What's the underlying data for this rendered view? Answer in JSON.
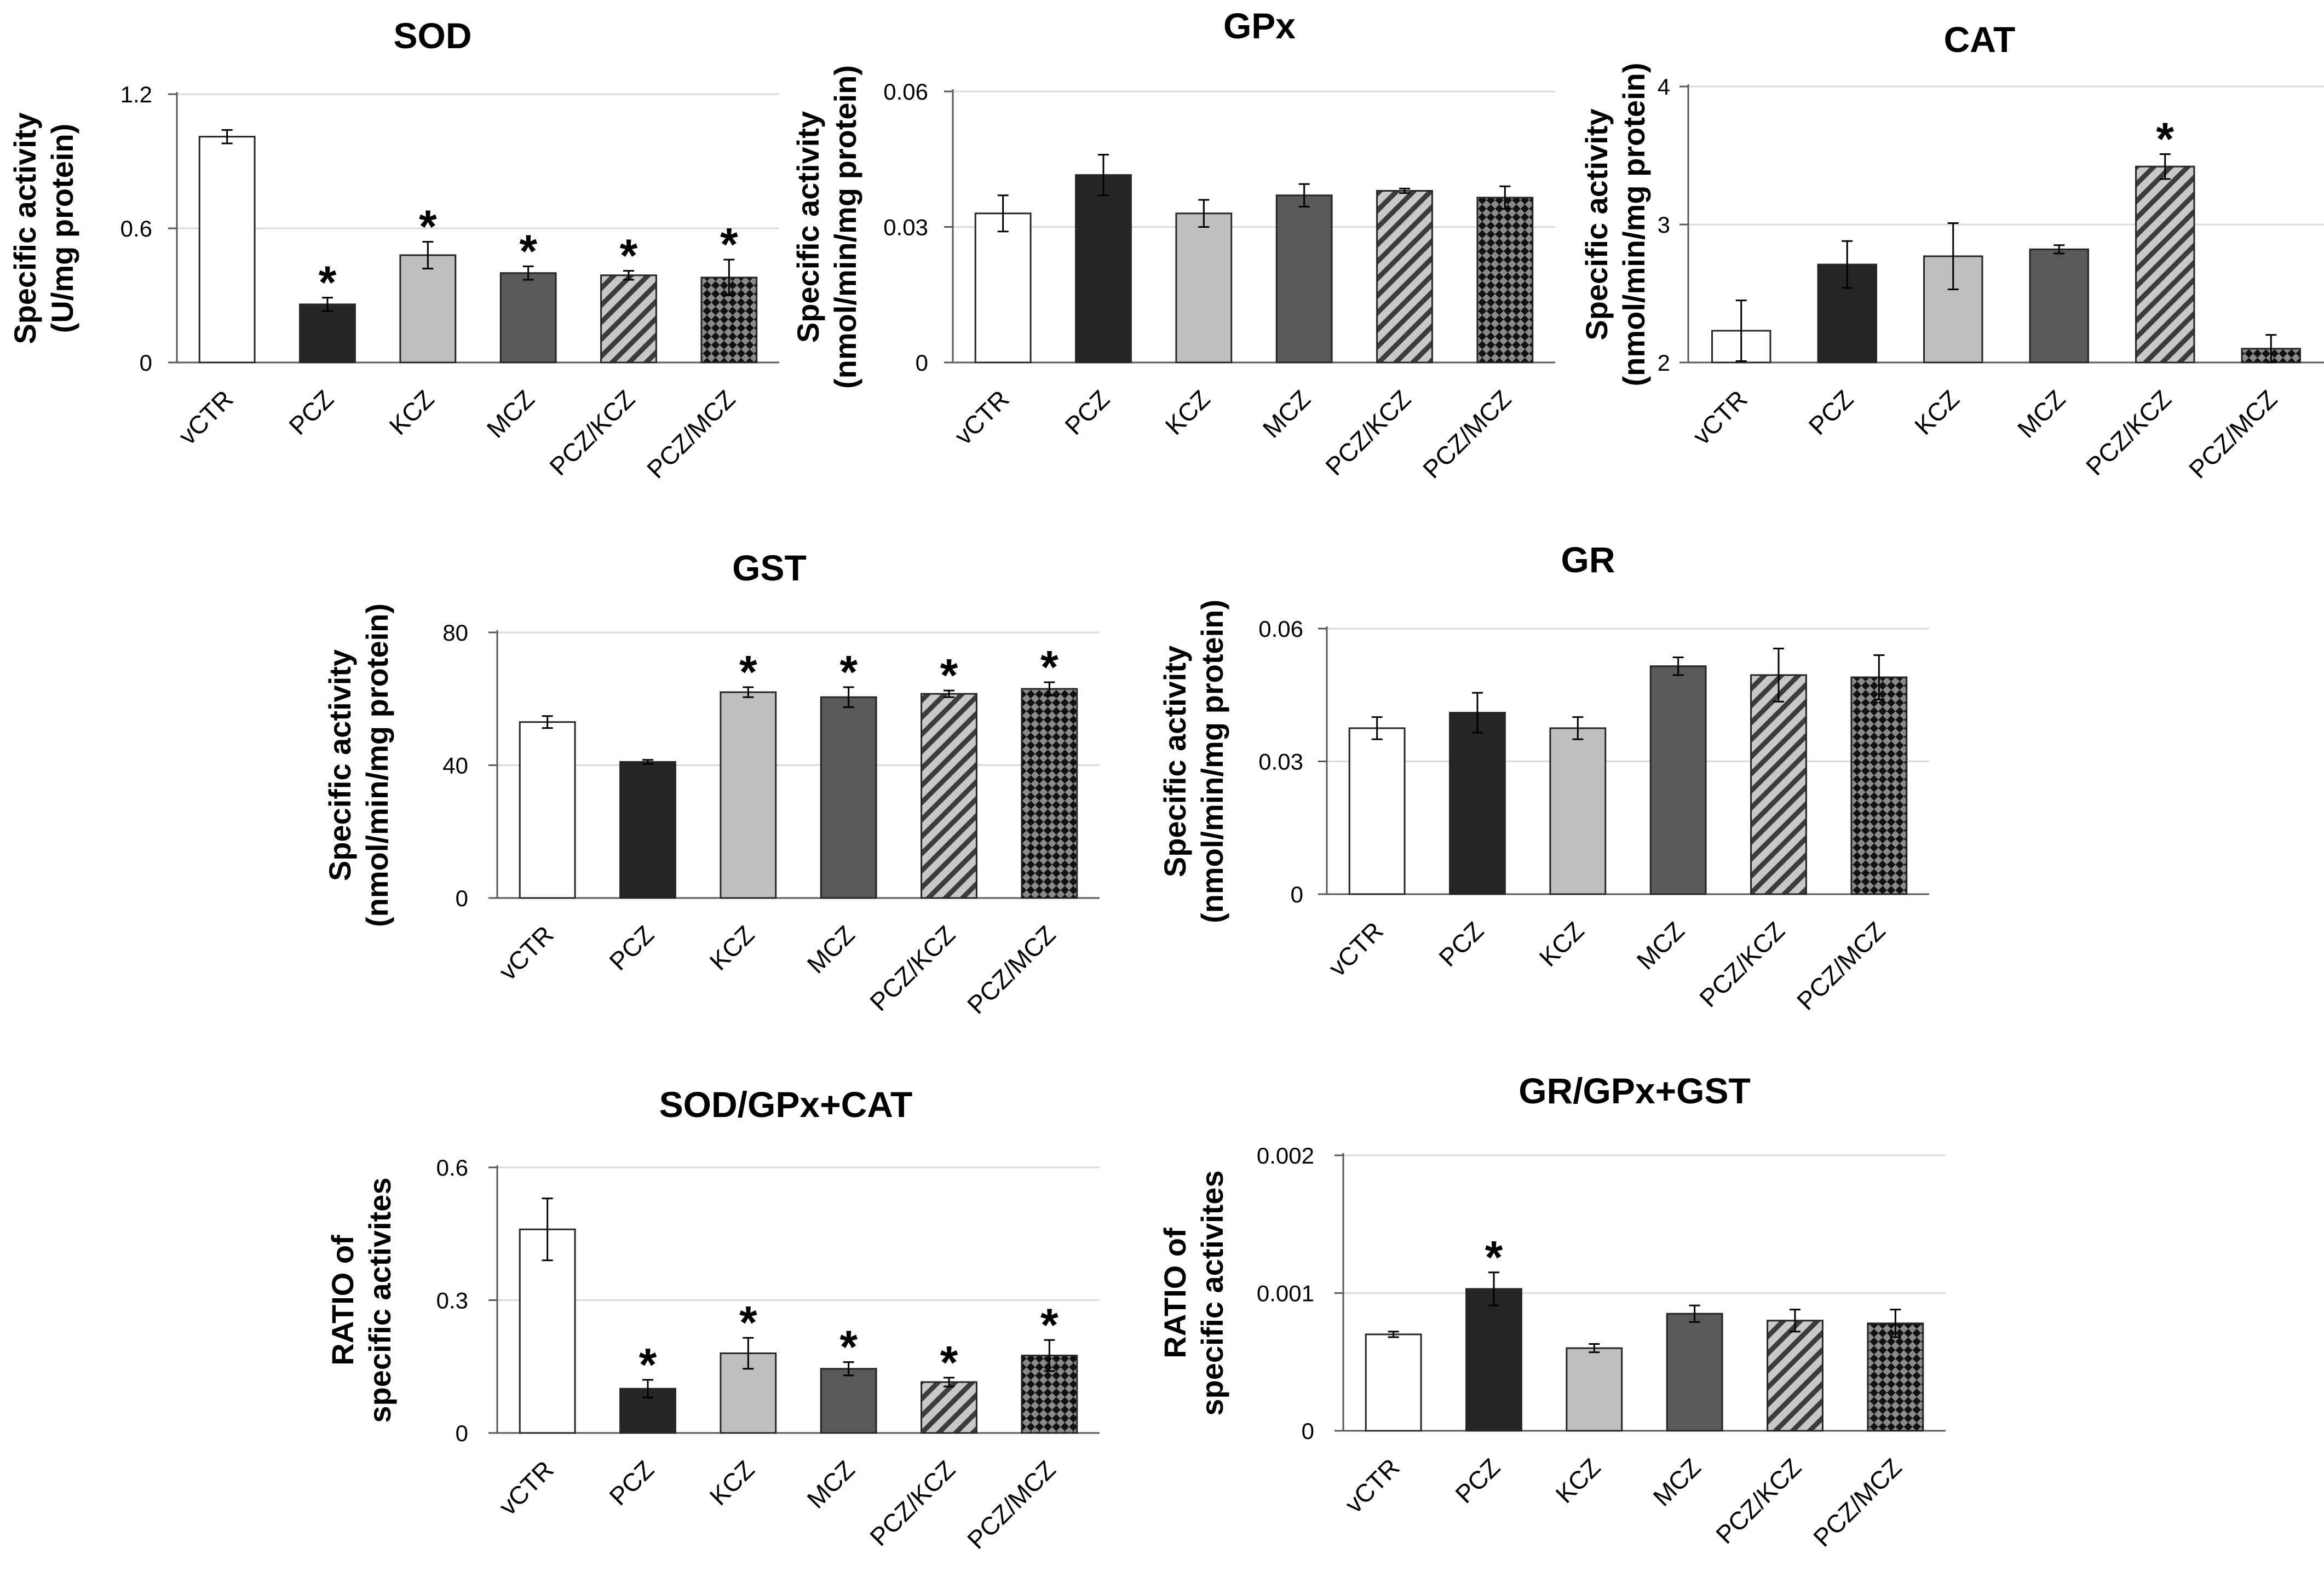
{
  "chart_data": [
    {
      "type": "bar",
      "title": "SOD",
      "ylabel": [
        "Specific activity",
        "(U/mg protein)"
      ],
      "categories": [
        "vCTR",
        "PCZ",
        "KCZ",
        "MCZ",
        "PCZ/KCZ",
        "PCZ/MCZ"
      ],
      "values": [
        1.01,
        0.26,
        0.48,
        0.4,
        0.39,
        0.38
      ],
      "errors": [
        0.03,
        0.03,
        0.06,
        0.03,
        0.02,
        0.08
      ],
      "significant": [
        false,
        true,
        true,
        true,
        true,
        true
      ],
      "significance_marker": "*",
      "ylim": [
        0,
        1.2
      ],
      "yticks": [
        "0",
        "0.6",
        "1.2"
      ],
      "grid": true
    },
    {
      "type": "bar",
      "title": "GPx",
      "ylabel": [
        "Specific activity",
        "(nmol/min/mg protein)"
      ],
      "categories": [
        "vCTR",
        "PCZ",
        "KCZ",
        "MCZ",
        "PCZ/KCZ",
        "PCZ/MCZ"
      ],
      "values": [
        0.033,
        0.0415,
        0.033,
        0.037,
        0.038,
        0.0365
      ],
      "errors": [
        0.004,
        0.0045,
        0.003,
        0.0025,
        0.0005,
        0.0025
      ],
      "significant": [
        false,
        false,
        false,
        false,
        false,
        false
      ],
      "significance_marker": "*",
      "ylim": [
        0,
        0.06
      ],
      "yticks": [
        "0",
        "0.03",
        "0.06"
      ],
      "grid": true
    },
    {
      "type": "bar",
      "title": "CAT",
      "ylabel": [
        "Specific activity",
        "(nmol/min/mg protein)"
      ],
      "categories": [
        "vCTR",
        "PCZ",
        "KCZ",
        "MCZ",
        "PCZ/KCZ",
        "PCZ/MCZ"
      ],
      "values": [
        2.23,
        2.71,
        2.77,
        2.82,
        3.42,
        2.1
      ],
      "errors": [
        0.22,
        0.17,
        0.24,
        0.03,
        0.09,
        0.1
      ],
      "significant": [
        false,
        false,
        false,
        false,
        true,
        false
      ],
      "significance_marker": "*",
      "ylim": [
        2,
        4
      ],
      "yticks": [
        "2",
        "3",
        "4"
      ],
      "grid": true
    },
    {
      "type": "bar",
      "title": "GST",
      "ylabel": [
        "Specific activity",
        "(nmol/min/mg protein)"
      ],
      "categories": [
        "vCTR",
        "PCZ",
        "KCZ",
        "MCZ",
        "PCZ/KCZ",
        "PCZ/MCZ"
      ],
      "values": [
        53,
        41,
        62,
        60.5,
        61.5,
        63
      ],
      "errors": [
        1.8,
        0.6,
        1.5,
        3,
        1,
        2
      ],
      "significant": [
        false,
        false,
        true,
        true,
        true,
        true
      ],
      "significance_marker": "*",
      "ylim": [
        0,
        80
      ],
      "yticks": [
        "0",
        "40",
        "80"
      ],
      "grid": true
    },
    {
      "type": "bar",
      "title": "GR",
      "ylabel": [
        "Specific activity",
        "(nmol/min/mg protein)"
      ],
      "categories": [
        "vCTR",
        "PCZ",
        "KCZ",
        "MCZ",
        "PCZ/KCZ",
        "PCZ/MCZ"
      ],
      "values": [
        0.0375,
        0.041,
        0.0375,
        0.0515,
        0.0495,
        0.049
      ],
      "errors": [
        0.0025,
        0.0045,
        0.0025,
        0.002,
        0.006,
        0.005
      ],
      "significant": [
        false,
        false,
        false,
        false,
        false,
        false
      ],
      "significance_marker": "*",
      "ylim": [
        0,
        0.06
      ],
      "yticks": [
        "0",
        "0.03",
        "0.06"
      ],
      "grid": true
    },
    {
      "type": "bar",
      "title": "SOD/GPx+CAT",
      "ylabel": [
        "RATIO of",
        "specific activites"
      ],
      "categories": [
        "vCTR",
        "PCZ",
        "KCZ",
        "MCZ",
        "PCZ/KCZ",
        "PCZ/MCZ"
      ],
      "values": [
        0.46,
        0.1,
        0.18,
        0.145,
        0.115,
        0.175
      ],
      "errors": [
        0.07,
        0.02,
        0.035,
        0.015,
        0.01,
        0.035
      ],
      "significant": [
        false,
        true,
        true,
        true,
        true,
        true
      ],
      "significance_marker": "*",
      "ylim": [
        0,
        0.6
      ],
      "yticks": [
        "0",
        "0.3",
        "0.6"
      ],
      "grid": true
    },
    {
      "type": "bar",
      "title": "GR/GPx+GST",
      "ylabel": [
        "RATIO of",
        "specific activites"
      ],
      "categories": [
        "vCTR",
        "PCZ",
        "KCZ",
        "MCZ",
        "PCZ/KCZ",
        "PCZ/MCZ"
      ],
      "values": [
        0.0007,
        0.00103,
        0.0006,
        0.00085,
        0.0008,
        0.00078
      ],
      "errors": [
        2e-05,
        0.00012,
        3e-05,
        6e-05,
        8e-05,
        0.0001
      ],
      "significant": [
        false,
        true,
        false,
        false,
        false,
        false
      ],
      "significance_marker": "*",
      "ylim": [
        0,
        0.002
      ],
      "yticks": [
        "0",
        "0.001",
        "0.002"
      ],
      "grid": true
    }
  ],
  "series_fills": {
    "vCTR": "#ffffff",
    "PCZ": "#262626",
    "KCZ": "#bfbfbf",
    "MCZ": "#595959",
    "PCZ/KCZ": "#a6a6a6",
    "PCZ/MCZ": "#404040"
  }
}
